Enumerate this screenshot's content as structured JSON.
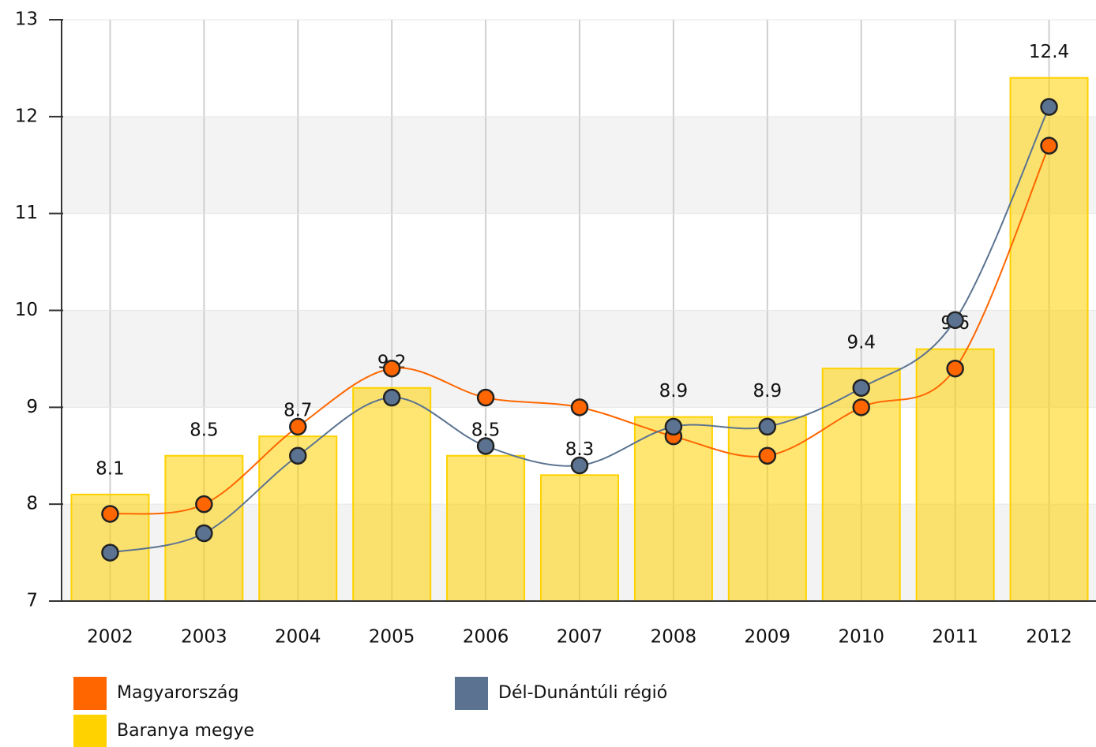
{
  "chart_data": {
    "type": "bar",
    "categories": [
      "2002",
      "2003",
      "2004",
      "2005",
      "2006",
      "2007",
      "2008",
      "2009",
      "2010",
      "2011",
      "2012"
    ],
    "series": [
      {
        "name": "Magyarország",
        "type": "line",
        "color": "#ff6600",
        "values": [
          7.9,
          8.0,
          8.8,
          9.4,
          9.1,
          9.0,
          8.7,
          8.5,
          9.0,
          9.4,
          11.7
        ]
      },
      {
        "name": "Dél-Dunántúli régió",
        "type": "line",
        "color": "#5b7390",
        "values": [
          7.5,
          7.7,
          8.5,
          9.1,
          8.6,
          8.4,
          8.8,
          8.8,
          9.2,
          9.9,
          12.1
        ]
      },
      {
        "name": "Baranya megye",
        "type": "bar",
        "color": "#ffd200",
        "values": [
          8.1,
          8.5,
          8.7,
          9.2,
          8.5,
          8.3,
          8.9,
          8.9,
          9.4,
          9.6,
          12.4
        ]
      }
    ],
    "ylim": [
      7,
      13
    ],
    "yticks": [
      7,
      8,
      9,
      10,
      11,
      12,
      13
    ],
    "grid": true
  }
}
